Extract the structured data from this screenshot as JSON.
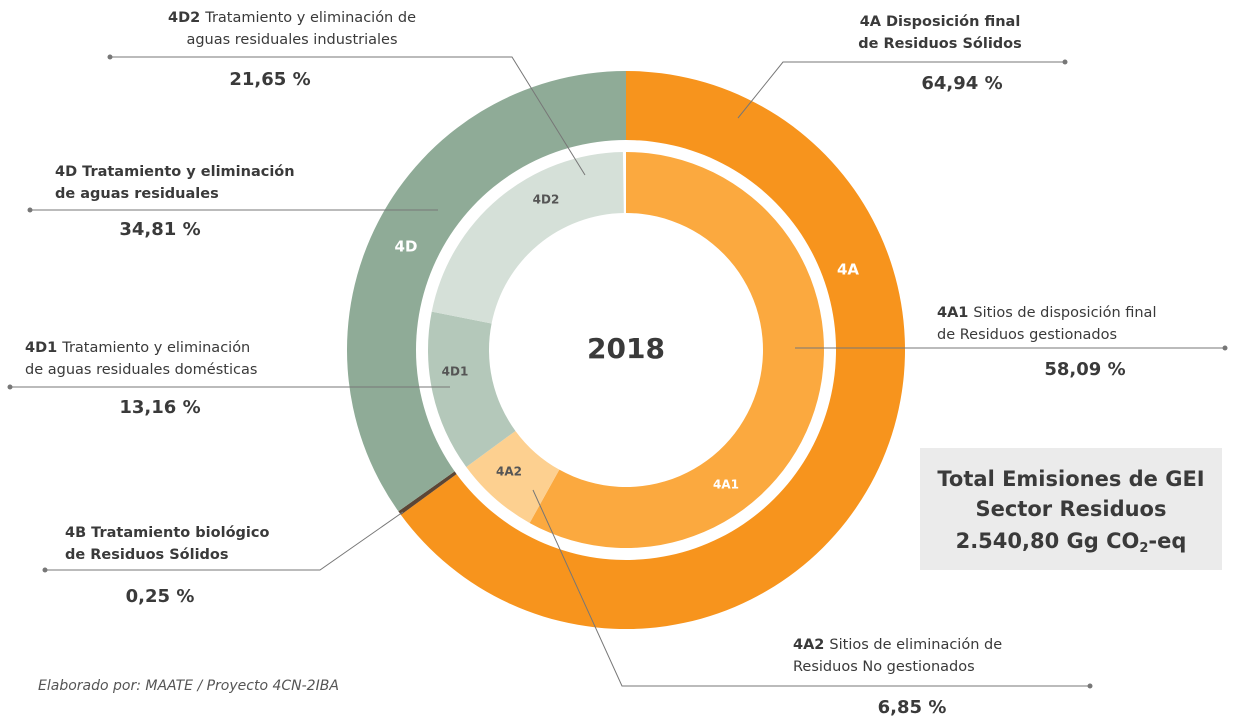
{
  "chart_data": {
    "type": "nested_donut",
    "center_label": "2018",
    "outer": {
      "codes": [
        "4A",
        "4B",
        "4D"
      ],
      "names": [
        [
          "Disposición final",
          "de Residuos Sólidos"
        ],
        [
          "Tratamiento biológico",
          "de Residuos Sólidos"
        ],
        [
          "Tratamiento y eliminación",
          "de aguas residuales"
        ]
      ],
      "values": [
        64.94,
        0.25,
        34.81
      ],
      "value_labels": [
        "64,94 %",
        "0,25 %",
        "34,81 %"
      ],
      "colors": [
        "#f7941d",
        "#5b4636",
        "#8fab97"
      ]
    },
    "inner": {
      "codes": [
        "4A1",
        "4A2",
        "4D1",
        "4D2"
      ],
      "names": [
        [
          "Sitios de disposición final",
          "de Residuos gestionados"
        ],
        [
          "Sitios de eliminación de",
          "Residuos No gestionados"
        ],
        [
          "Tratamiento y eliminación",
          "de aguas residuales domésticas"
        ],
        [
          "Tratamiento y eliminación de",
          "aguas residuales industriales"
        ]
      ],
      "values": [
        58.09,
        6.85,
        13.16,
        21.65
      ],
      "value_labels": [
        "58,09 %",
        "6,85 %",
        "13,16 %",
        "21,65 %"
      ],
      "colors": [
        "#fba93f",
        "#fdd090",
        "#b4c8ba",
        "#d5e0d8"
      ]
    },
    "total_box": {
      "lines": [
        "Total Emisiones de GEI",
        "Sector Residuos"
      ],
      "total": "2.540,80 Gg CO",
      "subscript": "2",
      "suffix": "-eq"
    },
    "source": "Elaborado por: MAATE / Proyecto 4CN-2IBA"
  }
}
